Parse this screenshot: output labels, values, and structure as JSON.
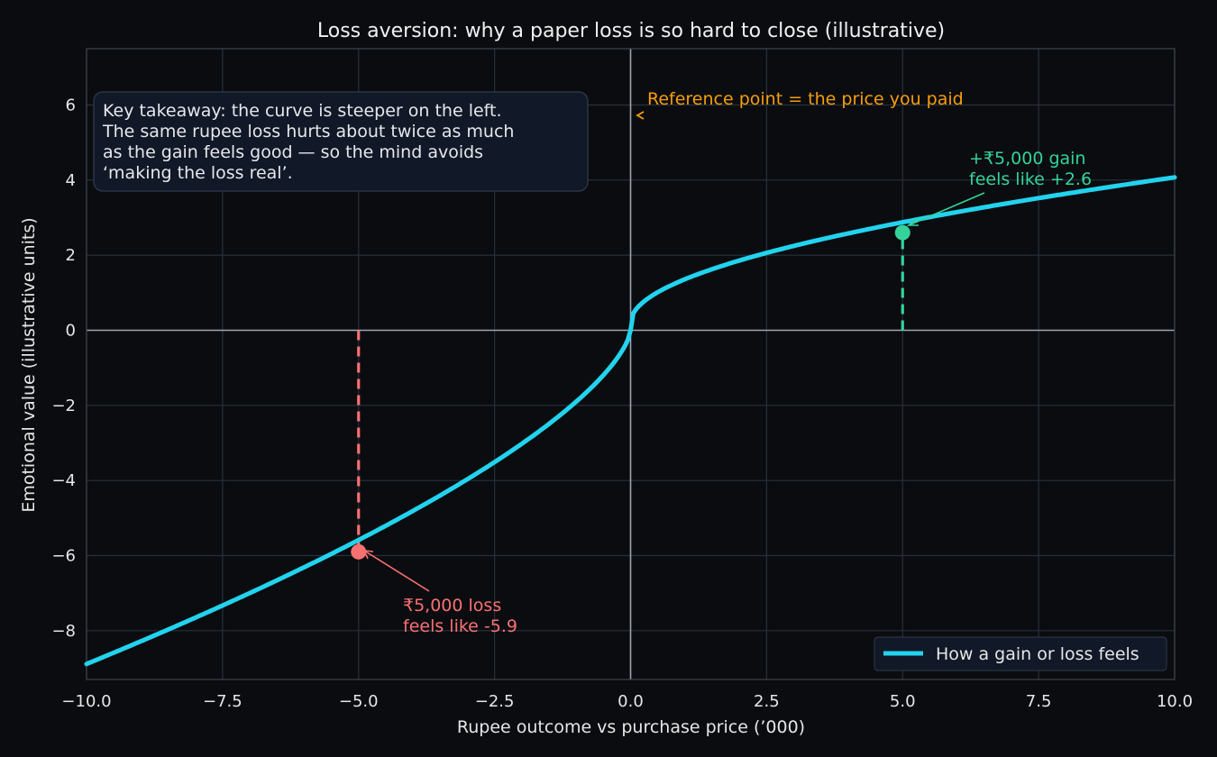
{
  "chart_data": {
    "type": "line",
    "title": "Loss aversion: why a paper loss is so hard to close (illustrative)",
    "xlabel": "Rupee outcome vs purchase price (’000)",
    "ylabel": "Emotional value (illustrative units)",
    "xlim": [
      -10,
      10
    ],
    "ylim": [
      -9.3,
      7.5
    ],
    "xticks": [
      -10,
      -7.5,
      -5,
      -2.5,
      0,
      2.5,
      5,
      7.5,
      10
    ],
    "yticks": [
      -8,
      -6,
      -4,
      -2,
      0,
      2,
      4,
      6
    ],
    "xtick_labels": [
      "−10.0",
      "−7.5",
      "−5.0",
      "−2.5",
      "0.0",
      "2.5",
      "5.0",
      "7.5",
      "10.0"
    ],
    "ytick_labels": [
      "−8",
      "−6",
      "−4",
      "−2",
      "0",
      "2",
      "4",
      "6"
    ],
    "grid": true,
    "legend_position": "bottom-right",
    "series": [
      {
        "name": "How a gain or loss feels",
        "color": "#22d3ee",
        "x": [
          -10,
          -9,
          -8,
          -7,
          -6,
          -5,
          -4,
          -3,
          -2,
          -1.5,
          -1,
          -0.5,
          -0.2,
          -0.05,
          0,
          0.05,
          0.2,
          0.5,
          1,
          1.5,
          2,
          3,
          4,
          5,
          6,
          7,
          8,
          9,
          10
        ],
        "y": [
          -8.93,
          -8.17,
          -7.4,
          -6.62,
          -5.8,
          -5.94,
          -5.07,
          -4.05,
          -2.9,
          -2.32,
          -1.66,
          -0.94,
          -0.43,
          -0.13,
          0,
          0.06,
          0.19,
          0.41,
          0.73,
          0.98,
          1.26,
          1.68,
          2.12,
          2.62,
          2.97,
          3.28,
          3.56,
          3.84,
          3.98
        ]
      }
    ],
    "highlights": [
      {
        "x": -5,
        "y": -5.9,
        "color": "#f87171",
        "label_line1": "₹5,000 loss",
        "label_line2": "feels like -5.9"
      },
      {
        "x": 5,
        "y": 2.6,
        "color": "#34d399",
        "label_line1": "+₹5,000 gain",
        "label_line2": "feels like +2.6"
      }
    ],
    "reference_annotation": {
      "text": "Reference point = the price you paid",
      "color": "#f59e0b"
    },
    "takeaway": [
      "Key takeaway: the curve is steeper on the left.",
      "The same rupee loss hurts about twice as much",
      "as the gain feels good — so the mind avoids",
      "‘making the loss real’."
    ],
    "colors": {
      "background": "#0b0c10",
      "curve": "#22d3ee",
      "loss": "#f87171",
      "gain": "#34d399",
      "reference": "#f59e0b"
    }
  }
}
